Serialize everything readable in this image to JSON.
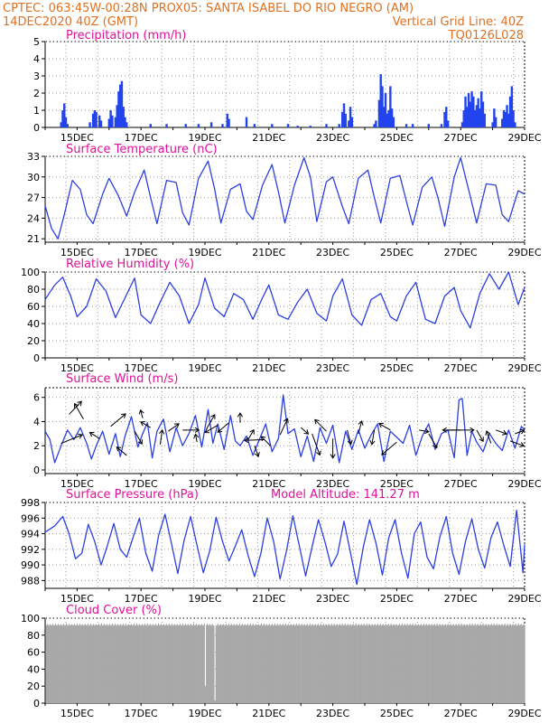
{
  "header": {
    "line1_left": "CPTEC:   063:45W-00:28N   PROX05: SANTA ISABEL DO RIO NEGRO (AM)",
    "line2_left": "14DEC2020 40Z (GMT)",
    "line2_right": "Vertical Grid Line: 40Z",
    "line3_right": "TQ0126L028"
  },
  "x_ticks": [
    "15DEC",
    "17DEC",
    "19DEC",
    "21DEC",
    "23DEC",
    "25DEC",
    "27DEC",
    "29DEC"
  ],
  "chart_data": [
    {
      "type": "bar",
      "title": "Precipitation (mm/h)",
      "ylim": [
        0,
        5
      ],
      "yticks": [
        0,
        1,
        2,
        3,
        4,
        5
      ],
      "x_range_days": [
        14.0,
        29.0
      ],
      "bars": [
        [
          14.5,
          0.3
        ],
        [
          14.55,
          1.0
        ],
        [
          14.6,
          1.4
        ],
        [
          14.65,
          0.6
        ],
        [
          14.7,
          0.2
        ],
        [
          15.4,
          0.3
        ],
        [
          15.5,
          0.8
        ],
        [
          15.55,
          1.0
        ],
        [
          15.6,
          0.9
        ],
        [
          15.7,
          0.7
        ],
        [
          15.75,
          0.4
        ],
        [
          16.0,
          0.5
        ],
        [
          16.05,
          1.0
        ],
        [
          16.1,
          0.7
        ],
        [
          16.2,
          0.6
        ],
        [
          16.25,
          1.3
        ],
        [
          16.3,
          2.1
        ],
        [
          16.35,
          2.5
        ],
        [
          16.4,
          2.7
        ],
        [
          16.45,
          1.2
        ],
        [
          16.5,
          0.6
        ],
        [
          16.55,
          0.3
        ],
        [
          17.3,
          0.2
        ],
        [
          17.8,
          0.2
        ],
        [
          18.4,
          0.2
        ],
        [
          18.8,
          0.2
        ],
        [
          19.2,
          0.3
        ],
        [
          19.55,
          0.2
        ],
        [
          19.7,
          0.8
        ],
        [
          19.75,
          0.5
        ],
        [
          20.3,
          0.6
        ],
        [
          20.55,
          0.2
        ],
        [
          21.1,
          0.2
        ],
        [
          21.6,
          0.2
        ],
        [
          21.9,
          0.1
        ],
        [
          22.3,
          0.1
        ],
        [
          22.8,
          0.2
        ],
        [
          23.2,
          0.2
        ],
        [
          23.3,
          0.9
        ],
        [
          23.35,
          1.4
        ],
        [
          23.4,
          0.8
        ],
        [
          23.5,
          0.4
        ],
        [
          23.55,
          1.2
        ],
        [
          23.6,
          0.6
        ],
        [
          24.3,
          0.2
        ],
        [
          24.35,
          0.4
        ],
        [
          24.45,
          1.6
        ],
        [
          24.5,
          3.1
        ],
        [
          24.55,
          2.4
        ],
        [
          24.6,
          1.2
        ],
        [
          24.65,
          2.0
        ],
        [
          24.7,
          0.8
        ],
        [
          24.75,
          1.0
        ],
        [
          24.8,
          2.4
        ],
        [
          24.85,
          1.1
        ],
        [
          24.9,
          0.6
        ],
        [
          25.3,
          0.2
        ],
        [
          25.5,
          0.2
        ],
        [
          26.0,
          0.2
        ],
        [
          26.4,
          0.2
        ],
        [
          26.5,
          0.9
        ],
        [
          26.55,
          1.2
        ],
        [
          26.6,
          0.4
        ],
        [
          27.05,
          0.3
        ],
        [
          27.1,
          1.0
        ],
        [
          27.15,
          1.8
        ],
        [
          27.2,
          1.2
        ],
        [
          27.25,
          2.0
        ],
        [
          27.3,
          1.5
        ],
        [
          27.35,
          2.1
        ],
        [
          27.4,
          1.8
        ],
        [
          27.45,
          1.0
        ],
        [
          27.5,
          1.3
        ],
        [
          27.55,
          1.7
        ],
        [
          27.6,
          1.1
        ],
        [
          27.65,
          2.1
        ],
        [
          27.7,
          1.5
        ],
        [
          27.75,
          0.8
        ],
        [
          28.0,
          0.3
        ],
        [
          28.05,
          1.1
        ],
        [
          28.1,
          0.6
        ],
        [
          28.3,
          0.5
        ],
        [
          28.35,
          1.0
        ],
        [
          28.4,
          0.9
        ],
        [
          28.45,
          1.3
        ],
        [
          28.5,
          0.8
        ],
        [
          28.55,
          1.8
        ],
        [
          28.6,
          2.4
        ],
        [
          28.65,
          1.0
        ],
        [
          28.7,
          0.3
        ]
      ]
    },
    {
      "type": "line",
      "title": "Surface Temperature (nC)",
      "ylim": [
        20.5,
        33
      ],
      "yticks": [
        21,
        24,
        27,
        30,
        33
      ],
      "x": [
        14.0,
        14.2,
        14.4,
        14.6,
        14.85,
        15.1,
        15.3,
        15.5,
        15.8,
        16.0,
        16.3,
        16.55,
        16.8,
        17.1,
        17.3,
        17.5,
        17.8,
        18.1,
        18.3,
        18.5,
        18.8,
        19.1,
        19.3,
        19.5,
        19.8,
        20.1,
        20.3,
        20.5,
        20.8,
        21.1,
        21.3,
        21.5,
        21.8,
        22.1,
        22.3,
        22.5,
        22.8,
        23.0,
        23.3,
        23.5,
        23.8,
        24.1,
        24.3,
        24.5,
        24.8,
        25.1,
        25.3,
        25.5,
        25.8,
        26.1,
        26.3,
        26.5,
        26.8,
        27.0,
        27.3,
        27.5,
        27.8,
        28.1,
        28.3,
        28.5,
        28.8,
        29.0
      ],
      "y": [
        25.8,
        22.5,
        21.0,
        24.5,
        29.5,
        28.2,
        24.5,
        23.2,
        27.5,
        29.8,
        27.2,
        24.3,
        27.8,
        31.0,
        27.0,
        23.2,
        29.5,
        29.2,
        24.8,
        23.0,
        29.8,
        32.3,
        28.3,
        23.3,
        28.2,
        29.0,
        25.0,
        23.8,
        28.8,
        31.8,
        27.8,
        23.3,
        28.8,
        32.8,
        30.0,
        23.5,
        29.3,
        30.0,
        25.7,
        23.2,
        29.8,
        31.0,
        27.0,
        23.3,
        29.8,
        30.2,
        26.5,
        23.0,
        28.5,
        30.0,
        26.8,
        22.8,
        30.0,
        32.8,
        27.2,
        23.3,
        29.0,
        28.8,
        24.5,
        23.5,
        28.0,
        27.5
      ]
    },
    {
      "type": "line",
      "title": "Relative Humidity (%)",
      "ylim": [
        0,
        100
      ],
      "yticks": [
        0,
        20,
        40,
        60,
        80,
        100
      ],
      "x": [
        14.0,
        14.3,
        14.55,
        14.8,
        15.0,
        15.3,
        15.6,
        15.9,
        16.2,
        16.5,
        16.8,
        17.0,
        17.3,
        17.6,
        17.9,
        18.2,
        18.5,
        18.8,
        19.0,
        19.3,
        19.6,
        19.9,
        20.2,
        20.5,
        20.8,
        21.0,
        21.3,
        21.6,
        21.9,
        22.2,
        22.5,
        22.8,
        23.0,
        23.3,
        23.6,
        23.9,
        24.2,
        24.5,
        24.8,
        25.0,
        25.3,
        25.6,
        25.9,
        26.2,
        26.5,
        26.8,
        27.0,
        27.3,
        27.6,
        27.9,
        28.2,
        28.5,
        28.8,
        29.0
      ],
      "y": [
        68,
        85,
        94,
        72,
        48,
        60,
        92,
        78,
        47,
        70,
        93,
        50,
        40,
        65,
        88,
        72,
        40,
        62,
        93,
        58,
        48,
        75,
        68,
        45,
        70,
        85,
        50,
        45,
        65,
        80,
        52,
        43,
        72,
        92,
        50,
        38,
        68,
        75,
        48,
        43,
        72,
        88,
        45,
        40,
        72,
        82,
        55,
        35,
        75,
        98,
        80,
        100,
        62,
        82
      ]
    },
    {
      "type": "line",
      "title": "Surface Wind (m/s)",
      "ylim": [
        -0.3,
        6.8
      ],
      "yticks": [
        0,
        2,
        4,
        6
      ],
      "x": [
        14.0,
        14.15,
        14.3,
        14.5,
        14.7,
        14.9,
        15.1,
        15.3,
        15.45,
        15.6,
        15.8,
        16.0,
        16.2,
        16.35,
        16.5,
        16.7,
        16.9,
        17.05,
        17.2,
        17.35,
        17.5,
        17.7,
        17.9,
        18.1,
        18.3,
        18.5,
        18.7,
        18.9,
        19.1,
        19.25,
        19.4,
        19.6,
        19.8,
        19.95,
        20.1,
        20.3,
        20.5,
        20.7,
        20.9,
        21.1,
        21.3,
        21.45,
        21.6,
        21.8,
        22.0,
        22.2,
        22.4,
        22.6,
        22.8,
        23.0,
        23.2,
        23.4,
        23.6,
        23.8,
        24.0,
        24.2,
        24.4,
        24.6,
        24.8,
        25.0,
        25.2,
        25.4,
        25.6,
        25.8,
        26.0,
        26.2,
        26.4,
        26.6,
        26.8,
        26.95,
        27.05,
        27.2,
        27.35,
        27.5,
        27.7,
        27.9,
        28.1,
        28.3,
        28.5,
        28.7,
        28.9,
        29.0
      ],
      "y": [
        3.2,
        2.5,
        0.6,
        2.0,
        3.3,
        2.5,
        3.5,
        2.2,
        0.9,
        2.0,
        3.2,
        1.3,
        3.0,
        1.1,
        2.8,
        4.4,
        1.9,
        3.0,
        3.9,
        1.0,
        3.2,
        4.2,
        1.5,
        3.5,
        2.0,
        3.0,
        4.5,
        1.9,
        5.0,
        2.2,
        3.8,
        1.7,
        4.5,
        2.4,
        2.0,
        2.8,
        1.2,
        2.5,
        3.8,
        1.5,
        2.6,
        6.2,
        3.0,
        3.4,
        1.1,
        2.8,
        0.7,
        3.5,
        2.2,
        3.7,
        0.6,
        3.2,
        1.7,
        3.3,
        1.8,
        2.9,
        3.8,
        0.7,
        3.2,
        2.7,
        2.2,
        3.7,
        1.2,
        2.8,
        3.8,
        1.7,
        3.0,
        3.3,
        1.0,
        5.8,
        5.9,
        1.2,
        3.2,
        2.3,
        1.5,
        3.0,
        2.2,
        1.6,
        3.3,
        1.8,
        3.6,
        3.3
      ],
      "arrows": [
        [
          14.5,
          2.2,
          22,
          0.7
        ],
        [
          14.75,
          4.6,
          46,
          0.55
        ],
        [
          15.2,
          4.2,
          120,
          0.55
        ],
        [
          15.7,
          2.6,
          148,
          0.35
        ],
        [
          16.05,
          3.6,
          40,
          0.6
        ],
        [
          16.55,
          1.2,
          140,
          0.4
        ],
        [
          16.8,
          3.2,
          300,
          0.45
        ],
        [
          17.05,
          4.3,
          105,
          0.25
        ],
        [
          17.3,
          3.5,
          150,
          0.35
        ],
        [
          17.6,
          2.1,
          82,
          0.45
        ],
        [
          17.85,
          3.2,
          35,
          0.4
        ],
        [
          18.3,
          3.3,
          0,
          0.5
        ],
        [
          18.75,
          2.3,
          100,
          0.25
        ],
        [
          19.05,
          3.4,
          60,
          0.5
        ],
        [
          19.4,
          3.7,
          210,
          0.45
        ],
        [
          19.75,
          3.9,
          220,
          0.45
        ],
        [
          20.1,
          3.9,
          90,
          0.3
        ],
        [
          20.35,
          2.5,
          60,
          0.35
        ],
        [
          20.85,
          2.5,
          182,
          0.6
        ],
        [
          20.55,
          2.0,
          290,
          0.35
        ],
        [
          21.05,
          2.0,
          135,
          0.4
        ],
        [
          21.35,
          2.9,
          65,
          0.55
        ],
        [
          22.0,
          3.5,
          320,
          0.3
        ],
        [
          22.35,
          3.0,
          290,
          0.7
        ],
        [
          22.8,
          3.2,
          135,
          0.5
        ],
        [
          23.0,
          2.6,
          -90,
          0.6
        ],
        [
          23.45,
          3.3,
          285,
          0.45
        ],
        [
          23.8,
          3.0,
          75,
          0.4
        ],
        [
          24.3,
          3.3,
          260,
          0.45
        ],
        [
          24.8,
          3.3,
          150,
          0.4
        ],
        [
          25.0,
          2.3,
          220,
          0.6
        ],
        [
          25.7,
          3.3,
          350,
          0.3
        ],
        [
          26.0,
          3.0,
          300,
          0.5
        ],
        [
          26.6,
          3.3,
          0,
          0.8
        ],
        [
          27.0,
          3.3,
          180,
          0.55
        ],
        [
          27.5,
          3.3,
          300,
          0.4
        ],
        [
          27.95,
          2.2,
          110,
          0.4
        ],
        [
          28.1,
          3.3,
          -20,
          0.35
        ],
        [
          28.55,
          2.4,
          340,
          0.45
        ],
        [
          28.7,
          3.0,
          20,
          0.3
        ]
      ]
    },
    {
      "type": "line",
      "title": "Surface Pressure (hPa)",
      "annotation": "Model Altitude: 141.27 m",
      "ylim": [
        987,
        998
      ],
      "yticks": [
        988,
        990,
        992,
        994,
        996,
        998
      ],
      "x": [
        14.0,
        14.3,
        14.55,
        14.75,
        14.95,
        15.15,
        15.35,
        15.55,
        15.75,
        15.95,
        16.15,
        16.35,
        16.55,
        16.75,
        16.95,
        17.15,
        17.35,
        17.55,
        17.75,
        17.95,
        18.15,
        18.35,
        18.55,
        18.75,
        18.95,
        19.15,
        19.35,
        19.55,
        19.75,
        19.95,
        20.15,
        20.35,
        20.55,
        20.75,
        20.95,
        21.15,
        21.35,
        21.55,
        21.75,
        21.95,
        22.15,
        22.35,
        22.55,
        22.75,
        22.95,
        23.15,
        23.35,
        23.55,
        23.75,
        23.95,
        24.15,
        24.35,
        24.55,
        24.75,
        24.95,
        25.15,
        25.35,
        25.55,
        25.75,
        25.95,
        26.15,
        26.35,
        26.55,
        26.75,
        26.95,
        27.15,
        27.35,
        27.55,
        27.75,
        27.95,
        28.15,
        28.35,
        28.55,
        28.75,
        28.95,
        29.0
      ],
      "y": [
        994.2,
        995.0,
        996.2,
        994.0,
        990.8,
        991.5,
        995.2,
        993.0,
        990.0,
        992.5,
        995.3,
        992.0,
        991.0,
        993.5,
        996.0,
        991.5,
        989.2,
        993.8,
        996.5,
        992.8,
        988.9,
        993.2,
        996.2,
        992.5,
        989.0,
        991.8,
        996.1,
        993.0,
        990.5,
        992.4,
        994.5,
        991.2,
        988.5,
        991.5,
        996.0,
        993.0,
        988.2,
        991.8,
        996.3,
        992.5,
        988.6,
        992.3,
        995.8,
        993.0,
        989.8,
        991.4,
        995.6,
        991.6,
        987.5,
        992.2,
        995.8,
        992.8,
        988.7,
        993.5,
        995.8,
        991.5,
        988.3,
        994.0,
        995.5,
        991.0,
        989.5,
        993.6,
        996.2,
        991.5,
        988.8,
        993.0,
        995.9,
        992.0,
        989.6,
        993.5,
        995.5,
        992.5,
        989.8,
        997.0,
        989.0,
        992.6
      ]
    },
    {
      "type": "bar",
      "title": "Cloud Cover (%)",
      "ylim": [
        0,
        100
      ],
      "yticks": [
        0,
        20,
        40,
        60,
        80,
        100
      ],
      "x_range_days": [
        14.0,
        29.0
      ],
      "base_value": 95,
      "gaps": [
        [
          19.0,
          20
        ],
        [
          19.3,
          3
        ]
      ]
    }
  ]
}
